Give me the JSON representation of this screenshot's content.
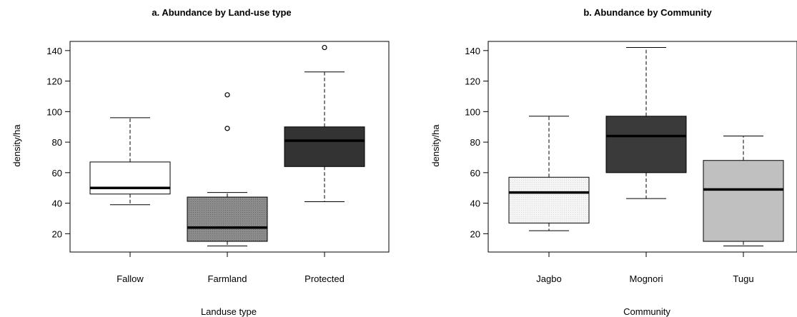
{
  "chart_data": [
    {
      "type": "box",
      "title": "a. Abundance by Land-use type",
      "xlabel": "Landuse type",
      "ylabel": "density/ha",
      "ylim": [
        8,
        146
      ],
      "yticks": [
        20,
        40,
        60,
        80,
        100,
        120,
        140
      ],
      "grid": false,
      "categories": [
        "Fallow",
        "Farmland",
        "Protected"
      ],
      "boxes": [
        {
          "name": "Fallow",
          "whisker_low": 39,
          "q1": 46,
          "median": 50,
          "q3": 67,
          "whisker_high": 96,
          "outliers": [],
          "fill": "#ffffff"
        },
        {
          "name": "Farmland",
          "whisker_low": 12,
          "q1": 15,
          "median": 24,
          "q3": 44,
          "whisker_high": 47,
          "outliers": [
            89,
            111
          ],
          "fill": "#8c8c8c"
        },
        {
          "name": "Protected",
          "whisker_low": 41,
          "q1": 64,
          "median": 81,
          "q3": 90,
          "whisker_high": 126,
          "outliers": [
            142
          ],
          "fill": "#333333"
        }
      ]
    },
    {
      "type": "box",
      "title": "b. Abundance by Community",
      "xlabel": "Community",
      "ylabel": "density/ha",
      "ylim": [
        8,
        146
      ],
      "yticks": [
        20,
        40,
        60,
        80,
        100,
        120,
        140
      ],
      "grid": false,
      "categories": [
        "Jagbo",
        "Mognori",
        "Tugu"
      ],
      "boxes": [
        {
          "name": "Jagbo",
          "whisker_low": 22,
          "q1": 27,
          "median": 47,
          "q3": 57,
          "whisker_high": 97,
          "outliers": [],
          "fill": "#f4f4f4"
        },
        {
          "name": "Mognori",
          "whisker_low": 43,
          "q1": 60,
          "median": 84,
          "q3": 97,
          "whisker_high": 142,
          "outliers": [],
          "fill": "#3a3a3a"
        },
        {
          "name": "Tugu",
          "whisker_low": 12,
          "q1": 15,
          "median": 49,
          "q3": 68,
          "whisker_high": 84,
          "outliers": [],
          "fill": "#c0c0c0"
        }
      ]
    }
  ]
}
